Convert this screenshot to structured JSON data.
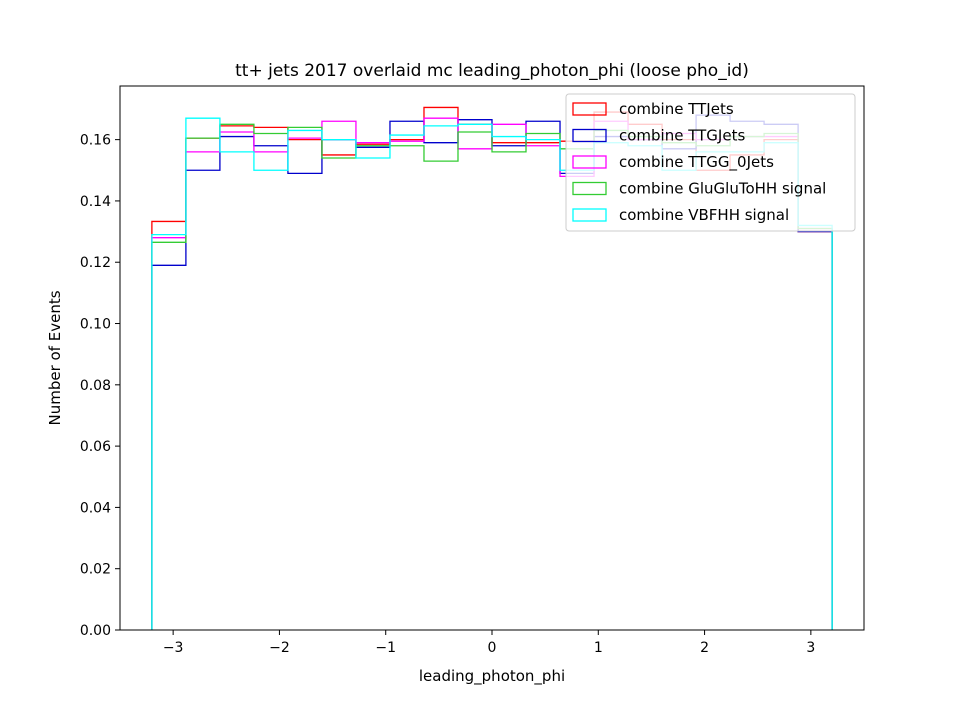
{
  "chart_data": {
    "type": "histogram",
    "title": "tt+ jets 2017 overlaid mc leading_photon_phi (loose pho_id)",
    "xlabel": "leading_photon_phi",
    "ylabel": "Number of Events",
    "xlim": [
      -3.5,
      3.5
    ],
    "ylim": [
      0,
      0.1775
    ],
    "xticks": [
      -3,
      -2,
      -1,
      0,
      1,
      2,
      3
    ],
    "xtick_labels": [
      "−3",
      "−2",
      "−1",
      "0",
      "1",
      "2",
      "3"
    ],
    "yticks": [
      0.0,
      0.02,
      0.04,
      0.06,
      0.08,
      0.1,
      0.12,
      0.14,
      0.16
    ],
    "ytick_labels": [
      "0.00",
      "0.02",
      "0.04",
      "0.06",
      "0.08",
      "0.10",
      "0.12",
      "0.14",
      "0.16"
    ],
    "grid": false,
    "legend_position": "top-right",
    "bin_edges": [
      -3.2,
      -2.88,
      -2.56,
      -2.24,
      -1.92,
      -1.6,
      -1.28,
      -0.96,
      -0.64,
      -0.32,
      0.0,
      0.32,
      0.64,
      0.96,
      1.28,
      1.6,
      1.92,
      2.24,
      2.56,
      2.88,
      3.2
    ],
    "series": [
      {
        "name": "combine TTJets",
        "color": "#ff0000",
        "values": [
          0.1333,
          0.1605,
          0.1645,
          0.164,
          0.16,
          0.155,
          0.1585,
          0.16,
          0.1705,
          0.165,
          0.159,
          0.159,
          0.1595,
          0.169,
          0.165,
          0.16,
          0.15,
          0.155,
          0.16,
          0.13
        ]
      },
      {
        "name": "combine TTGJets",
        "color": "#0000cc",
        "values": [
          0.119,
          0.15,
          0.161,
          0.158,
          0.149,
          0.16,
          0.1575,
          0.166,
          0.159,
          0.1665,
          0.158,
          0.166,
          0.149,
          0.161,
          0.16,
          0.157,
          0.168,
          0.166,
          0.165,
          0.13
        ]
      },
      {
        "name": "combine TTGG_0Jets",
        "color": "#ff00ff",
        "values": [
          0.128,
          0.156,
          0.1625,
          0.156,
          0.1605,
          0.166,
          0.159,
          0.1595,
          0.167,
          0.157,
          0.165,
          0.158,
          0.148,
          0.166,
          0.16,
          0.162,
          0.16,
          0.161,
          0.161,
          0.131
        ]
      },
      {
        "name": "combine GluGluToHH signal",
        "color": "#33cc33",
        "values": [
          0.1265,
          0.1605,
          0.165,
          0.162,
          0.164,
          0.154,
          0.158,
          0.158,
          0.153,
          0.1625,
          0.156,
          0.162,
          0.157,
          0.163,
          0.161,
          0.159,
          0.158,
          0.161,
          0.162,
          0.131
        ]
      },
      {
        "name": "combine VBFHH signal",
        "color": "#00ffff",
        "values": [
          0.129,
          0.167,
          0.156,
          0.15,
          0.163,
          0.16,
          0.154,
          0.1615,
          0.1645,
          0.165,
          0.161,
          0.16,
          0.15,
          0.159,
          0.158,
          0.15,
          0.156,
          0.156,
          0.159,
          0.132
        ]
      }
    ]
  }
}
